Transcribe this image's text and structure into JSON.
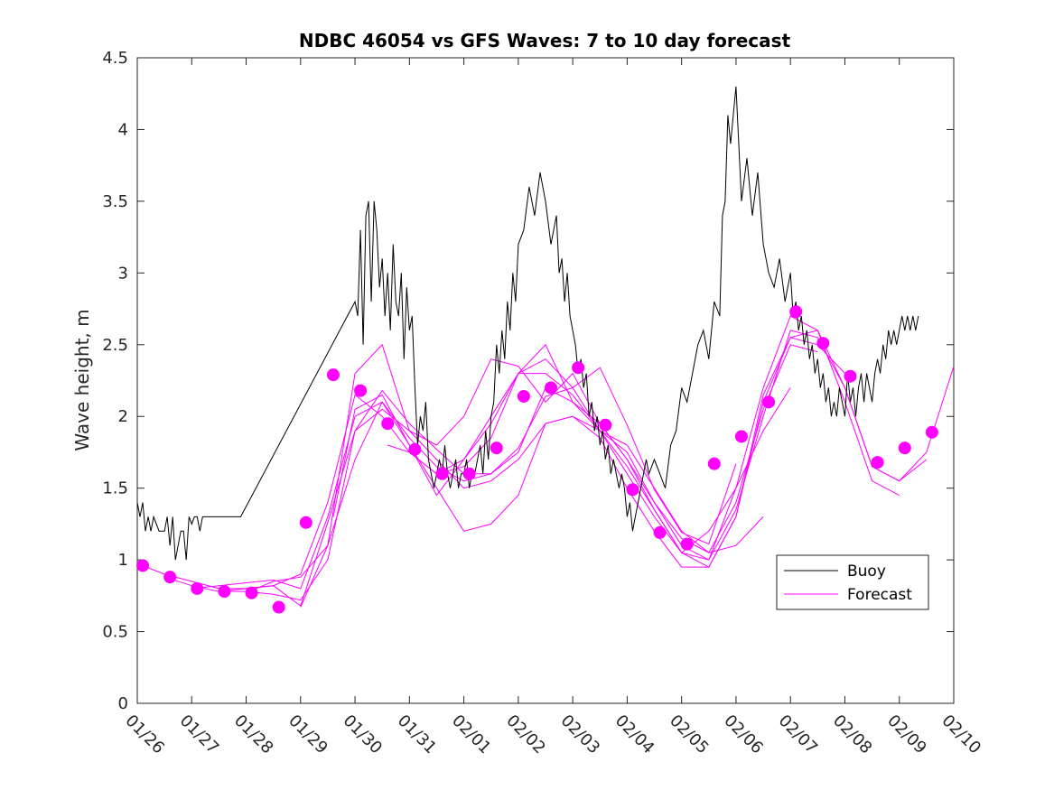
{
  "chart_data": {
    "type": "line",
    "title": "NDBC 46054 vs GFS Waves: 7 to 10 day forecast",
    "xlabel": "",
    "ylabel": "Wave height, m",
    "xlim": [
      0,
      15
    ],
    "ylim": [
      0,
      4.5
    ],
    "yticks": [
      0,
      0.5,
      1,
      1.5,
      2,
      2.5,
      3,
      3.5,
      4,
      4.5
    ],
    "ytick_labels": [
      "0",
      "0.5",
      "1",
      "1.5",
      "2",
      "2.5",
      "3",
      "3.5",
      "4",
      "4.5"
    ],
    "xticks": [
      0,
      1,
      2,
      3,
      4,
      5,
      6,
      7,
      8,
      9,
      10,
      11,
      12,
      13,
      14,
      15
    ],
    "xtick_labels": [
      "01/26",
      "01/27",
      "01/28",
      "01/29",
      "01/30",
      "01/31",
      "02/01",
      "02/02",
      "02/03",
      "02/04",
      "02/05",
      "02/06",
      "02/07",
      "02/08",
      "02/09",
      "02/10"
    ],
    "grid": false,
    "legend": {
      "position": "right-lower",
      "entries": [
        "Buoy",
        "Forecast"
      ]
    },
    "colors": {
      "buoy": "#000000",
      "forecast": "#ff00ff"
    },
    "series": [
      {
        "name": "Buoy",
        "color": "#000000",
        "x": [
          0,
          0.05,
          0.1,
          0.15,
          0.2,
          0.25,
          0.3,
          0.4,
          0.5,
          0.55,
          0.6,
          0.65,
          0.7,
          0.75,
          0.8,
          0.85,
          0.9,
          0.95,
          1.0,
          1.05,
          1.1,
          1.15,
          1.2,
          1.25,
          1.3,
          1.35,
          1.4,
          1.45,
          1.5,
          1.55,
          1.6,
          1.65,
          1.7,
          1.75,
          1.8,
          1.9,
          4.0,
          4.05,
          4.1,
          4.15,
          4.2,
          4.25,
          4.3,
          4.35,
          4.4,
          4.45,
          4.5,
          4.55,
          4.6,
          4.65,
          4.7,
          4.75,
          4.8,
          4.85,
          4.9,
          4.95,
          5.0,
          5.05,
          5.1,
          5.15,
          5.2,
          5.25,
          5.3,
          5.35,
          5.4,
          5.45,
          5.5,
          5.55,
          5.6,
          5.65,
          5.7,
          5.75,
          5.8,
          5.85,
          5.9,
          5.95,
          6.0,
          6.05,
          6.1,
          6.15,
          6.2,
          6.25,
          6.3,
          6.35,
          6.4,
          6.45,
          6.5,
          6.55,
          6.6,
          6.65,
          6.7,
          6.75,
          6.8,
          6.85,
          6.9,
          6.95,
          7.0,
          7.1,
          7.2,
          7.3,
          7.4,
          7.5,
          7.6,
          7.7,
          7.75,
          7.8,
          7.85,
          7.9,
          7.95,
          8.0,
          8.05,
          8.1,
          8.15,
          8.2,
          8.25,
          8.3,
          8.35,
          8.4,
          8.45,
          8.5,
          8.55,
          8.6,
          8.65,
          8.7,
          8.75,
          8.8,
          8.85,
          8.9,
          8.95,
          9.0,
          9.05,
          9.1,
          9.15,
          9.2,
          9.25,
          9.3,
          9.35,
          9.4,
          9.5,
          9.6,
          9.7,
          9.8,
          9.9,
          10.0,
          10.1,
          10.2,
          10.3,
          10.4,
          10.5,
          10.6,
          10.7,
          10.75,
          10.8,
          10.85,
          10.9,
          11.0,
          11.1,
          11.2,
          11.3,
          11.4,
          11.5,
          11.6,
          11.7,
          11.8,
          11.9,
          12.0,
          12.05,
          12.1,
          12.15,
          12.2,
          12.25,
          12.3,
          12.35,
          12.4,
          12.45,
          12.5,
          12.55,
          12.6,
          12.65,
          12.7,
          12.75,
          12.8,
          12.85,
          12.9,
          12.95,
          13.0,
          13.05,
          13.1,
          13.15,
          13.2,
          13.25,
          13.3,
          13.35,
          13.4,
          13.45,
          13.5,
          13.55,
          13.6,
          13.65,
          13.7,
          13.75,
          13.8,
          13.85,
          13.9,
          13.95,
          14.0,
          14.05,
          14.1,
          14.15,
          14.2,
          14.25,
          14.3,
          14.35
        ],
        "values": [
          1.4,
          1.3,
          1.4,
          1.2,
          1.3,
          1.2,
          1.3,
          1.2,
          1.2,
          1.3,
          1.1,
          1.3,
          1.0,
          1.1,
          1.2,
          1.2,
          1.0,
          1.3,
          1.25,
          1.3,
          1.3,
          1.2,
          1.3,
          1.3,
          1.3,
          1.3,
          1.3,
          1.3,
          1.3,
          1.3,
          1.3,
          1.3,
          1.3,
          1.3,
          1.3,
          1.3,
          2.8,
          2.7,
          3.3,
          2.5,
          3.4,
          3.5,
          2.8,
          3.5,
          3.3,
          2.9,
          3.1,
          2.7,
          3.0,
          2.6,
          3.2,
          2.8,
          2.7,
          3.0,
          2.4,
          2.9,
          2.6,
          2.7,
          2.2,
          1.8,
          2.0,
          1.9,
          2.1,
          1.7,
          1.6,
          1.5,
          1.6,
          1.7,
          1.6,
          1.8,
          1.6,
          1.5,
          1.6,
          1.7,
          1.5,
          1.6,
          1.6,
          1.7,
          1.5,
          1.6,
          1.6,
          1.7,
          1.8,
          1.6,
          1.9,
          1.7,
          2.0,
          2.1,
          2.5,
          2.3,
          2.6,
          2.4,
          2.8,
          2.6,
          3.0,
          2.8,
          3.2,
          3.3,
          3.6,
          3.4,
          3.7,
          3.5,
          3.2,
          3.4,
          3.0,
          3.1,
          2.8,
          3.0,
          2.7,
          2.6,
          2.5,
          2.3,
          2.4,
          2.2,
          2.3,
          2.0,
          2.1,
          1.9,
          2.0,
          1.8,
          1.9,
          1.7,
          1.8,
          1.6,
          1.7,
          1.6,
          1.5,
          1.6,
          1.5,
          1.3,
          1.4,
          1.2,
          1.3,
          1.4,
          1.5,
          1.6,
          1.7,
          1.6,
          1.7,
          1.6,
          1.5,
          1.8,
          1.9,
          2.2,
          2.1,
          2.3,
          2.5,
          2.6,
          2.4,
          2.8,
          2.7,
          3.4,
          3.5,
          4.1,
          3.9,
          4.3,
          3.5,
          3.8,
          3.4,
          3.7,
          3.2,
          3.0,
          2.9,
          3.1,
          2.8,
          3.0,
          2.7,
          2.8,
          2.6,
          2.7,
          2.5,
          2.6,
          2.4,
          2.5,
          2.3,
          2.4,
          2.2,
          2.3,
          2.1,
          2.2,
          2.0,
          2.1,
          2.0,
          2.2,
          2.1,
          2.0,
          2.3,
          2.1,
          2.2,
          2.0,
          2.2,
          2.3,
          2.1,
          2.3,
          2.2,
          2.1,
          2.3,
          2.4,
          2.3,
          2.5,
          2.4,
          2.6,
          2.5,
          2.6,
          2.5,
          2.6,
          2.7,
          2.6,
          2.7,
          2.6,
          2.7,
          2.6,
          2.7
        ]
      }
    ],
    "forecast_runs": [
      {
        "x": [
          0.1,
          0.5,
          1.0,
          1.5,
          2.0,
          2.5,
          3.0,
          3.5,
          4.0,
          4.5,
          5.0,
          5.5,
          6.0,
          6.5,
          7.0,
          7.5,
          8.0,
          8.5,
          9.0,
          9.5,
          10.0,
          10.5,
          11.0
        ],
        "values": [
          0.96,
          0.9,
          0.85,
          0.8,
          0.8,
          0.82,
          0.68,
          1.26,
          1.9,
          2.18,
          1.95,
          1.77,
          1.6,
          1.6,
          1.78,
          2.14,
          2.2,
          2.34,
          1.94,
          1.49,
          1.19,
          1.11,
          1.67
        ]
      },
      {
        "x": [
          0.5,
          1.0,
          1.5,
          2.0,
          2.5,
          3.0,
          3.5,
          4.0,
          4.5,
          5.0,
          5.5,
          6.0,
          6.5,
          7.0,
          7.5,
          8.0,
          8.5,
          9.0,
          9.5,
          10.0,
          10.5,
          11.0,
          11.5
        ],
        "values": [
          0.88,
          0.82,
          0.78,
          0.78,
          0.76,
          0.72,
          1.0,
          1.9,
          2.05,
          1.9,
          1.7,
          1.5,
          1.55,
          1.7,
          1.95,
          2.0,
          1.9,
          1.8,
          1.5,
          1.2,
          1.05,
          1.1,
          1.3
        ]
      },
      {
        "x": [
          1.0,
          1.5,
          2.0,
          2.5,
          3.0,
          3.5,
          4.0,
          4.5,
          5.0,
          5.5,
          6.0,
          6.5,
          7.0,
          7.5,
          8.0,
          8.5,
          9.0,
          9.5,
          10.0,
          10.5,
          11.0,
          11.5,
          12.0
        ],
        "values": [
          0.8,
          0.82,
          0.84,
          0.86,
          0.8,
          1.3,
          2.0,
          2.1,
          1.85,
          1.65,
          1.55,
          1.6,
          1.75,
          2.2,
          2.1,
          1.95,
          1.7,
          1.4,
          1.1,
          1.0,
          1.5,
          1.9,
          2.2
        ]
      },
      {
        "x": [
          1.5,
          2.0,
          2.5,
          3.0,
          3.5,
          4.0,
          4.5,
          5.0,
          5.5,
          6.0,
          6.5,
          7.0,
          7.5,
          8.0,
          8.5,
          9.0,
          9.5,
          10.0,
          10.5,
          11.0,
          11.5,
          12.0,
          12.5
        ],
        "values": [
          0.78,
          0.8,
          0.82,
          0.9,
          1.4,
          2.15,
          2.0,
          1.75,
          1.6,
          1.65,
          1.85,
          2.3,
          2.5,
          2.1,
          1.9,
          1.75,
          1.4,
          1.15,
          1.05,
          1.4,
          2.05,
          2.5,
          2.45
        ]
      },
      {
        "x": [
          2.0,
          2.5,
          3.0,
          3.5,
          4.0,
          4.5,
          5.0,
          5.5,
          6.0,
          6.5,
          7.0,
          7.5,
          8.0,
          8.5,
          9.0,
          9.5,
          10.0,
          10.5,
          11.0,
          11.5,
          12.0,
          12.5,
          13.0
        ],
        "values": [
          0.77,
          0.85,
          0.88,
          1.1,
          2.3,
          2.5,
          1.9,
          1.8,
          2.0,
          2.4,
          2.35,
          2.1,
          2.3,
          1.95,
          1.7,
          1.35,
          1.05,
          0.95,
          1.3,
          2.1,
          2.55,
          2.5,
          2.3
        ]
      },
      {
        "x": [
          3.0,
          3.5,
          4.0,
          4.5,
          5.0,
          5.5,
          6.0,
          6.5,
          7.0,
          7.5,
          8.0,
          8.5,
          9.0,
          9.5,
          10.0,
          10.5,
          11.0,
          11.5,
          12.0,
          12.5,
          13.0,
          13.5,
          14.0
        ],
        "values": [
          0.67,
          1.1,
          1.7,
          2.1,
          1.8,
          1.5,
          1.2,
          1.25,
          1.45,
          1.95,
          2.0,
          1.85,
          1.5,
          1.2,
          0.95,
          0.95,
          1.3,
          2.15,
          2.55,
          2.6,
          2.1,
          1.55,
          1.45
        ]
      },
      {
        "x": [
          3.6,
          4.0,
          4.5,
          5.0,
          5.5,
          6.0,
          6.5,
          7.0,
          7.5,
          8.0,
          8.5,
          9.0,
          9.5,
          10.0,
          10.5,
          11.0,
          11.5,
          12.0,
          12.5,
          13.0,
          13.5,
          14.0,
          14.5
        ],
        "values": [
          1.3,
          2.05,
          2.15,
          1.8,
          1.45,
          1.7,
          1.95,
          2.3,
          2.4,
          2.2,
          1.9,
          1.65,
          1.35,
          1.05,
          1.0,
          1.35,
          2.0,
          2.6,
          2.55,
          2.2,
          1.65,
          1.55,
          1.7
        ]
      },
      {
        "x": [
          4.6,
          5.0,
          5.5,
          6.0,
          6.5,
          7.0,
          7.5,
          8.0,
          8.5,
          9.0,
          9.5,
          10.0,
          10.5,
          11.0,
          11.5,
          12.0,
          12.5,
          13.0,
          13.5,
          14.0,
          14.5,
          15.0
        ],
        "values": [
          1.8,
          1.75,
          1.6,
          1.7,
          2.0,
          2.3,
          2.3,
          2.15,
          1.9,
          1.6,
          1.3,
          1.05,
          1.2,
          1.5,
          2.2,
          2.7,
          2.6,
          2.2,
          1.65,
          1.55,
          1.75,
          2.35
        ]
      }
    ],
    "forecast_markers": {
      "color": "#ff00ff",
      "x": [
        0.1,
        0.6,
        1.1,
        1.6,
        2.1,
        2.6,
        3.1,
        3.6,
        4.1,
        4.6,
        5.1,
        5.6,
        6.1,
        6.6,
        7.1,
        7.6,
        8.1,
        8.6,
        9.1,
        9.6,
        10.1,
        10.6,
        11.1,
        11.6,
        12.1,
        12.6,
        13.1,
        13.6,
        14.1,
        14.6
      ],
      "values": [
        0.96,
        0.88,
        0.8,
        0.78,
        0.77,
        0.67,
        1.26,
        2.29,
        2.18,
        1.95,
        1.77,
        1.6,
        1.6,
        1.78,
        2.14,
        2.2,
        2.34,
        1.94,
        1.49,
        1.19,
        1.11,
        1.67,
        1.86,
        2.1,
        2.73,
        2.51,
        2.28,
        1.68,
        1.78,
        1.89
      ]
    }
  }
}
